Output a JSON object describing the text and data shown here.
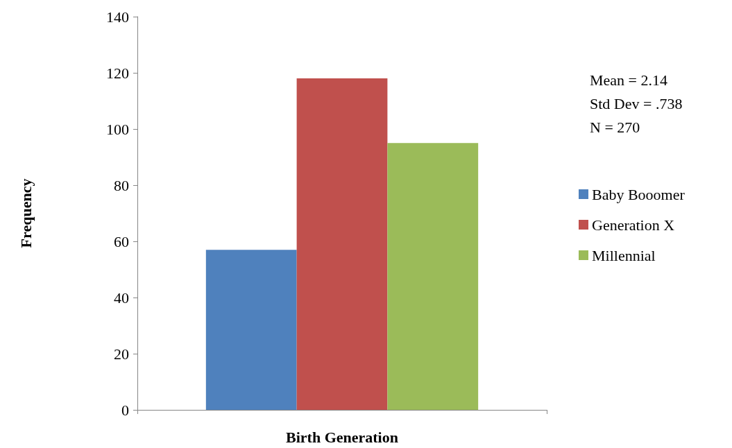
{
  "chart_data": {
    "type": "bar",
    "categories": [
      null
    ],
    "series": [
      {
        "name": "Baby Booomer",
        "color": "#4f81bd",
        "values": [
          57
        ]
      },
      {
        "name": "Generation X",
        "color": "#c0504d",
        "values": [
          118
        ]
      },
      {
        "name": "Millennial",
        "color": "#9bbb59",
        "values": [
          95
        ]
      }
    ],
    "xlabel": "Birth Generation",
    "ylabel": "Frequency",
    "ylim": [
      0,
      140
    ],
    "yticks": [
      0,
      20,
      40,
      60,
      80,
      100,
      120,
      140
    ],
    "grid": false,
    "legend": "right",
    "annotations": [
      "Mean = 2.14",
      "Std Dev = .738",
      "N = 270"
    ]
  }
}
